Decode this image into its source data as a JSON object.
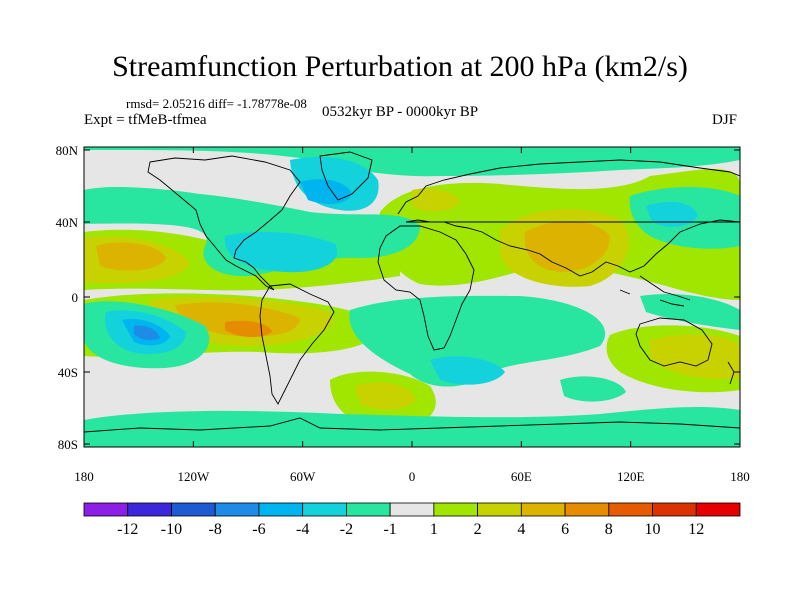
{
  "title": "Streamfunction Perturbation at 200 hPa (km2/s)",
  "stats": "rmsd= 2.05216 diff= -1.78778e-08",
  "experiment": "Expt = tfMeB-tfmea",
  "period": "0532kyr BP - 0000kyr BP",
  "season": "DJF",
  "lon_ticks": [
    "180",
    "120W",
    "60W",
    "0",
    "60E",
    "120E",
    "180"
  ],
  "lat_ticks": [
    "80N",
    "40N",
    "0",
    "40S",
    "80S"
  ],
  "colorbar": {
    "labels": [
      "-12",
      "-10",
      "-8",
      "-6",
      "-4",
      "-2",
      "-1",
      "1",
      "2",
      "4",
      "6",
      "8",
      "10",
      "12"
    ],
    "colors": [
      "#8c1ee6",
      "#3c28dc",
      "#1e5ad2",
      "#1e8ce6",
      "#00b4f0",
      "#14d2dc",
      "#28e6a0",
      "#e6e6e6",
      "#a0e600",
      "#c8d200",
      "#dcb400",
      "#e68c00",
      "#e65a00",
      "#dc3200",
      "#e60000"
    ]
  },
  "field_colors": {
    "background": "#e6e6e6",
    "pos1": "#a0e600",
    "pos2": "#c8d200",
    "pos3": "#dcb400",
    "pos4": "#e68c00",
    "neg1": "#28e6a0",
    "neg2": "#14d2dc",
    "neg3": "#00b4f0",
    "neg4": "#1e8ce6"
  }
}
